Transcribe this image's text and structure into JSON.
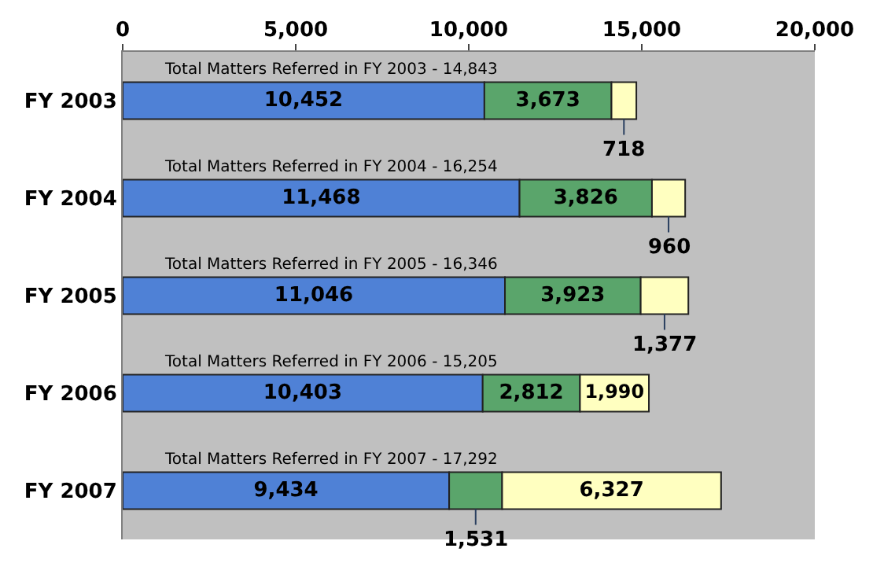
{
  "chart_data": {
    "type": "bar",
    "orientation": "horizontal",
    "stacked": true,
    "grid": false,
    "categories": [
      "FY 2003",
      "FY 2004",
      "FY 2005",
      "FY 2006",
      "FY 2007"
    ],
    "series": [
      {
        "color": "#4f81d6",
        "values": [
          10452,
          11468,
          11046,
          10403,
          9434
        ],
        "value_labels": [
          "10,452",
          "11,468",
          "11,046",
          "10,403",
          "9,434"
        ]
      },
      {
        "color": "#5aa56b",
        "values": [
          3673,
          3826,
          3923,
          2812,
          1531
        ],
        "value_labels": [
          "3,673",
          "3,826",
          "3,923",
          "2,812",
          "1,531"
        ]
      },
      {
        "color": "#ffffc0",
        "values": [
          718,
          960,
          1377,
          1990,
          6327
        ],
        "value_labels": [
          "718",
          "960",
          "1,377",
          "1,990",
          "6,327"
        ]
      }
    ],
    "xlim": [
      0,
      20000
    ],
    "xticks": [
      0,
      {
        "value": 5000,
        "label": "5,000"
      },
      {
        "value": 10000,
        "label": "10,000"
      },
      {
        "value": 15000,
        "label": "15,000"
      },
      {
        "value": 20000,
        "label": "20,000"
      }
    ],
    "annotations": [
      "Total Matters Referred in FY 2003 - 14,843",
      "Total Matters Referred in FY 2004 - 16,254",
      "Total Matters Referred in FY 2005 - 16,346",
      "Total Matters Referred in FY 2006 - 15,205",
      "Total Matters Referred in FY 2007 - 17,292"
    ]
  }
}
